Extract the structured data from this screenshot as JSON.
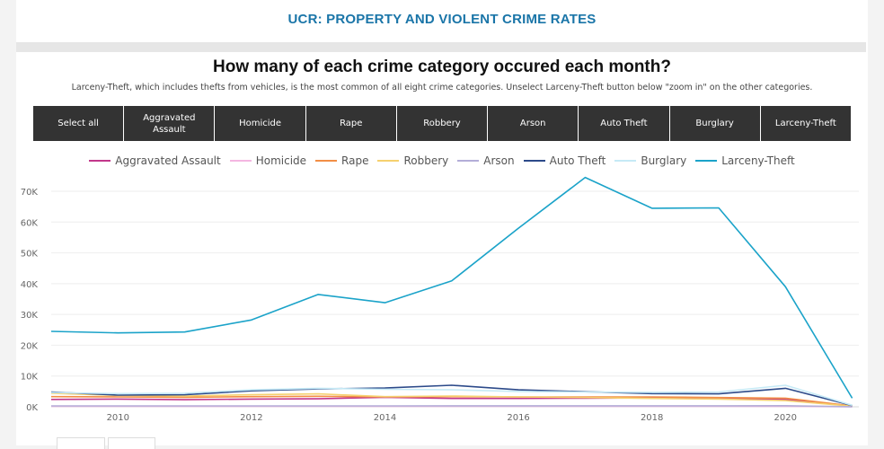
{
  "report": {
    "title": "UCR: PROPERTY AND VIOLENT CRIME RATES",
    "question": "How many of each crime category occured each month?",
    "subtitle": "Larceny-Theft, which includes thefts from vehicles, is the most common of all eight crime categories. Unselect Larceny-Theft button below \"zoom in\" on the other categories."
  },
  "buttons": [
    {
      "label": "Select all"
    },
    {
      "label": "Aggravated Assault"
    },
    {
      "label": "Homicide"
    },
    {
      "label": "Rape"
    },
    {
      "label": "Robbery"
    },
    {
      "label": "Arson"
    },
    {
      "label": "Auto Theft"
    },
    {
      "label": "Burglary"
    },
    {
      "label": "Larceny-Theft"
    }
  ],
  "chart_data": {
    "type": "line",
    "x": [
      2009,
      2010,
      2011,
      2012,
      2013,
      2014,
      2015,
      2016,
      2017,
      2018,
      2019,
      2020,
      2021
    ],
    "xticks": [
      "2010",
      "2012",
      "2014",
      "2016",
      "2018",
      "2020"
    ],
    "xtick_values": [
      2010,
      2012,
      2014,
      2016,
      2018,
      2020
    ],
    "xlim": [
      2009,
      2021.1
    ],
    "ylim": [
      0,
      75000
    ],
    "yticks": [
      "0K",
      "10K",
      "20K",
      "30K",
      "40K",
      "50K",
      "60K",
      "70K"
    ],
    "ytick_values": [
      0,
      10000,
      20000,
      30000,
      40000,
      50000,
      60000,
      70000
    ],
    "grid": true,
    "legend_position": "top",
    "series": [
      {
        "name": "Aggravated Assault",
        "color": "#c2378b",
        "values": [
          2400,
          2500,
          2300,
          2500,
          2600,
          3100,
          2700,
          2700,
          2800,
          2900,
          2800,
          2400,
          300
        ]
      },
      {
        "name": "Homicide",
        "color": "#f4b6e1",
        "values": [
          150,
          150,
          140,
          150,
          150,
          160,
          170,
          170,
          180,
          170,
          160,
          150,
          20
        ]
      },
      {
        "name": "Rape",
        "color": "#f28e45",
        "values": [
          3300,
          3200,
          3100,
          3300,
          3400,
          3200,
          3300,
          3200,
          3200,
          3200,
          3000,
          2800,
          300
        ]
      },
      {
        "name": "Robbery",
        "color": "#f6d16f",
        "values": [
          4400,
          3700,
          3500,
          3900,
          4200,
          3300,
          3500,
          3200,
          3000,
          2700,
          2500,
          2000,
          200
        ]
      },
      {
        "name": "Arson",
        "color": "#b3aed8",
        "values": [
          300,
          300,
          280,
          300,
          300,
          300,
          320,
          320,
          330,
          330,
          320,
          350,
          40
        ]
      },
      {
        "name": "Auto Theft",
        "color": "#2c4a8a",
        "values": [
          4800,
          3800,
          3900,
          5200,
          5800,
          6100,
          7000,
          5500,
          4900,
          4300,
          4200,
          6000,
          400
        ]
      },
      {
        "name": "Burglary",
        "color": "#c6eaf6",
        "values": [
          4600,
          4300,
          4400,
          5500,
          6000,
          5700,
          5500,
          5000,
          4800,
          4700,
          4800,
          7000,
          500
        ]
      },
      {
        "name": "Larceny-Theft",
        "color": "#1ba3c9",
        "values": [
          24500,
          24000,
          24300,
          28200,
          36500,
          33800,
          40900,
          58000,
          74500,
          64500,
          64600,
          39000,
          2800
        ]
      }
    ]
  }
}
